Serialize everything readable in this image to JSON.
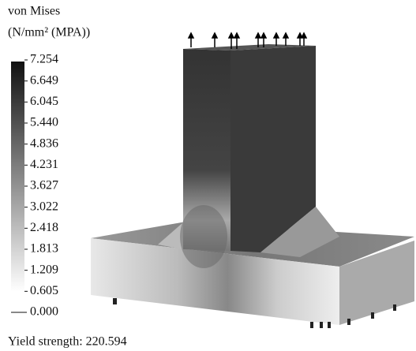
{
  "legend": {
    "title": [
      "von Mises",
      "(N/mm² (MPA))"
    ],
    "labels": [
      "7.254",
      "6.649",
      "6.045",
      "5.440",
      "4.836",
      "4.231",
      "3.627",
      "3.022",
      "2.418",
      "1.813",
      "1.209",
      "0.605",
      "0.000"
    ]
  },
  "footer": "Yield strength: 220.594"
}
